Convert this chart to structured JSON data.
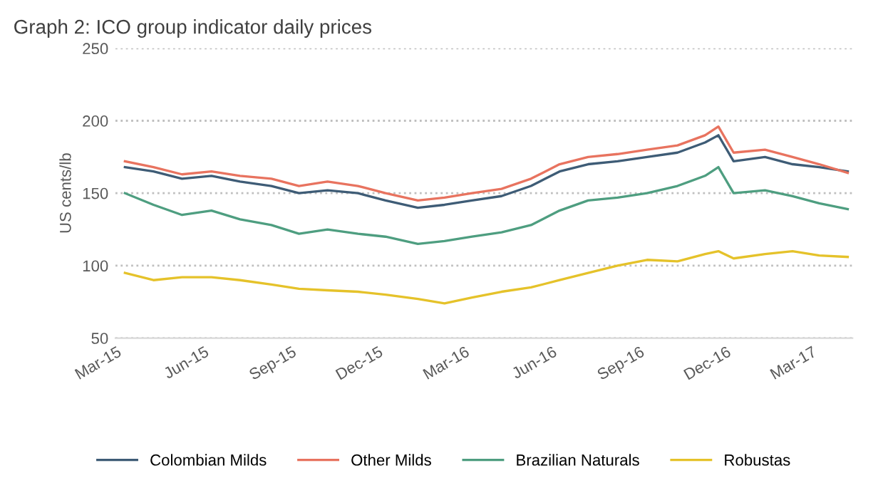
{
  "chart_data": {
    "type": "line",
    "title": "Graph 2: ICO group indicator daily prices",
    "ylabel": "US cents/lb",
    "x": [
      "2015-03-02",
      "2015-04-01",
      "2015-05-01",
      "2015-06-01",
      "2015-07-01",
      "2015-08-03",
      "2015-09-01",
      "2015-10-01",
      "2015-11-02",
      "2015-12-01",
      "2016-01-04",
      "2016-02-01",
      "2016-03-01",
      "2016-04-01",
      "2016-05-02",
      "2016-06-01",
      "2016-07-01",
      "2016-08-01",
      "2016-09-01",
      "2016-10-03",
      "2016-11-01",
      "2016-11-15",
      "2016-12-01",
      "2017-01-03",
      "2017-02-01",
      "2017-03-01",
      "2017-03-31"
    ],
    "series": [
      {
        "name": "Colombian Milds",
        "color": "#3e5c76",
        "values": [
          168,
          165,
          160,
          162,
          158,
          155,
          150,
          152,
          150,
          145,
          140,
          142,
          145,
          148,
          155,
          165,
          170,
          172,
          175,
          178,
          185,
          190,
          172,
          175,
          170,
          168,
          165
        ]
      },
      {
        "name": "Other Milds",
        "color": "#e8735f",
        "values": [
          172,
          168,
          163,
          165,
          162,
          160,
          155,
          158,
          155,
          150,
          145,
          147,
          150,
          153,
          160,
          170,
          175,
          177,
          180,
          183,
          190,
          196,
          178,
          180,
          175,
          170,
          164
        ]
      },
      {
        "name": "Brazilian Naturals",
        "color": "#4e9e80",
        "values": [
          150,
          142,
          135,
          138,
          132,
          128,
          122,
          125,
          122,
          120,
          115,
          117,
          120,
          123,
          128,
          138,
          145,
          147,
          150,
          155,
          162,
          168,
          150,
          152,
          148,
          143,
          139
        ]
      },
      {
        "name": "Robustas",
        "color": "#e5c22a",
        "values": [
          95,
          90,
          92,
          92,
          90,
          87,
          84,
          83,
          82,
          80,
          77,
          74,
          78,
          82,
          85,
          90,
          95,
          100,
          104,
          103,
          108,
          110,
          105,
          108,
          110,
          107,
          106
        ]
      }
    ],
    "xlim": [
      "2015-02-20",
      "2017-04-05"
    ],
    "xticks": [
      {
        "value": "2015-03-01",
        "label": "Mar-15"
      },
      {
        "value": "2015-06-01",
        "label": "Jun-15"
      },
      {
        "value": "2015-09-01",
        "label": "Sep-15"
      },
      {
        "value": "2015-12-01",
        "label": "Dec-15"
      },
      {
        "value": "2016-03-01",
        "label": "Mar-16"
      },
      {
        "value": "2016-06-01",
        "label": "Jun-16"
      },
      {
        "value": "2016-09-01",
        "label": "Sep-16"
      },
      {
        "value": "2016-12-01",
        "label": "Dec-16"
      },
      {
        "value": "2017-03-01",
        "label": "Mar-17"
      }
    ],
    "ylim": [
      50,
      250
    ],
    "yticks": [
      50,
      100,
      150,
      200,
      250
    ],
    "grid": "y",
    "legend": "bottom",
    "marker": "none",
    "line_style": "solid"
  }
}
